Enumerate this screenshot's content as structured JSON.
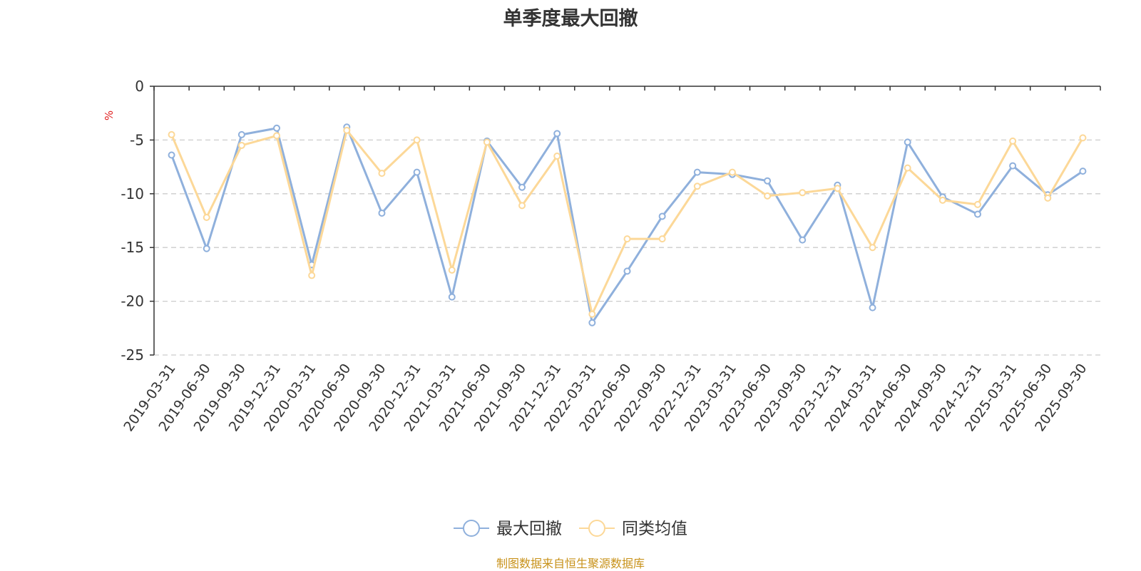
{
  "chart_data": {
    "type": "line",
    "title": "单季度最大回撤",
    "ylabel": "%",
    "ylim": [
      -25,
      0
    ],
    "yticks": [
      0,
      -5,
      -10,
      -15,
      -20,
      -25
    ],
    "grid": true,
    "legend_position": "bottom-center",
    "categories": [
      "2019-03-31",
      "2019-06-30",
      "2019-09-30",
      "2019-12-31",
      "2020-03-31",
      "2020-06-30",
      "2020-09-30",
      "2020-12-31",
      "2021-03-31",
      "2021-06-30",
      "2021-09-30",
      "2021-12-31",
      "2022-03-31",
      "2022-06-30",
      "2022-09-30",
      "2022-12-31",
      "2023-03-31",
      "2023-06-30",
      "2023-09-30",
      "2023-12-31",
      "2024-03-31",
      "2024-06-30",
      "2024-09-30",
      "2024-12-31",
      "2025-03-31",
      "2025-06-30",
      "2025-09-30"
    ],
    "series": [
      {
        "name": "最大回撤",
        "color": "#8fb0dc",
        "values": [
          -6.4,
          -15.1,
          -4.5,
          -3.9,
          -16.6,
          -3.8,
          -11.8,
          -8.0,
          -19.6,
          -5.1,
          -9.4,
          -4.4,
          -22.0,
          -17.2,
          -12.1,
          -8.0,
          -8.2,
          -8.8,
          -14.3,
          -9.2,
          -20.6,
          -5.2,
          -10.3,
          -11.9,
          -7.4,
          -10.1,
          -7.9
        ]
      },
      {
        "name": "同类均值",
        "color": "#fcd898",
        "values": [
          -4.5,
          -12.2,
          -5.5,
          -4.6,
          -17.6,
          -4.1,
          -8.1,
          -5.0,
          -17.1,
          -5.2,
          -11.1,
          -6.5,
          -21.2,
          -14.2,
          -14.2,
          -9.3,
          -8.0,
          -10.2,
          -9.9,
          -9.5,
          -15.0,
          -7.6,
          -10.6,
          -11.0,
          -5.1,
          -10.4,
          -4.8
        ]
      }
    ]
  },
  "source_note": "制图数据来自恒生聚源数据库"
}
